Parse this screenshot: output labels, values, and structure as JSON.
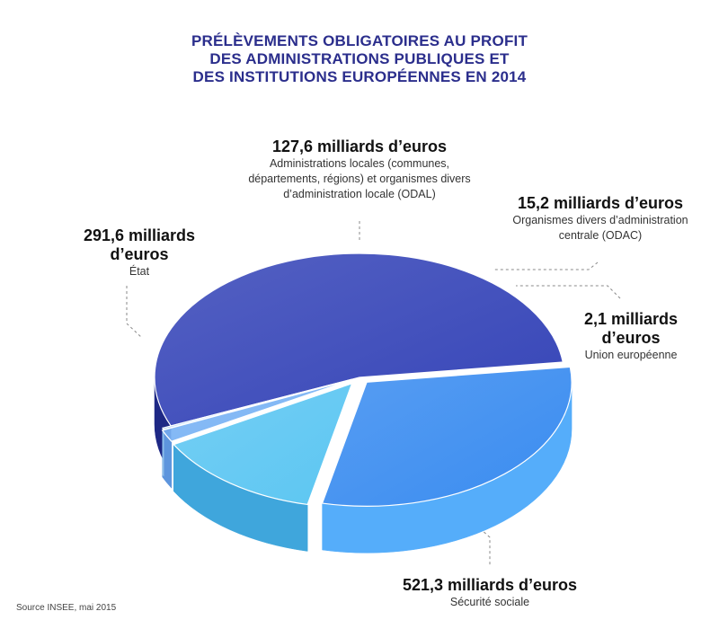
{
  "title": {
    "line1": "PRÉLÈVEMENTS OBLIGATOIRES AU PROFIT",
    "line2": "DES ADMINISTRATIONS PUBLIQUES ET",
    "line3": "DES INSTITUTIONS EUROPÉENNES EN 2014"
  },
  "labels": {
    "odal": {
      "value": "127,6 milliards d’euros",
      "desc1": "Administrations locales (communes,",
      "desc2": "départements, régions) et organismes divers",
      "desc3": "d’administration locale (ODAL)"
    },
    "odac": {
      "value": "15,2 milliards d’euros",
      "desc1": "Organismes divers d’administration",
      "desc2": "centrale (ODAC)"
    },
    "etat": {
      "value1": "291,6 milliards",
      "value2": "d’euros",
      "desc": "État"
    },
    "ue": {
      "value1": "2,1 milliards",
      "value2": "d’euros",
      "desc": "Union européenne"
    },
    "secu": {
      "value": "521,3 milliards d’euros",
      "desc": "Sécurité sociale"
    }
  },
  "source": "Source INSEE, mai 2015",
  "chart_data": {
    "type": "pie",
    "title": "PRÉLÈVEMENTS OBLIGATOIRES AU PROFIT DES ADMINISTRATIONS PUBLIQUES ET DES INSTITUTIONS EUROPÉENNES EN 2014",
    "unit": "milliards d’euros",
    "slices": [
      {
        "label": "Sécurité sociale",
        "value": 521.3,
        "color": "#3645b8",
        "side": "#1e2885"
      },
      {
        "label": "État",
        "value": 291.6,
        "color": "#3a8cf0",
        "side": "#55adfa"
      },
      {
        "label": "Administrations locales (communes, départements, régions) et organismes divers d’administration locale (ODAL)",
        "value": 127.6,
        "color": "#5cc6f2",
        "side": "#3fa6dc"
      },
      {
        "label": "Organismes divers d’administration centrale (ODAC)",
        "value": 15.2,
        "color": "#7ab3f4",
        "side": "#5d95dd"
      },
      {
        "label": "Union européenne",
        "value": 2.1,
        "color": "#b9dcf9",
        "side": "#8fc0ea"
      }
    ]
  }
}
